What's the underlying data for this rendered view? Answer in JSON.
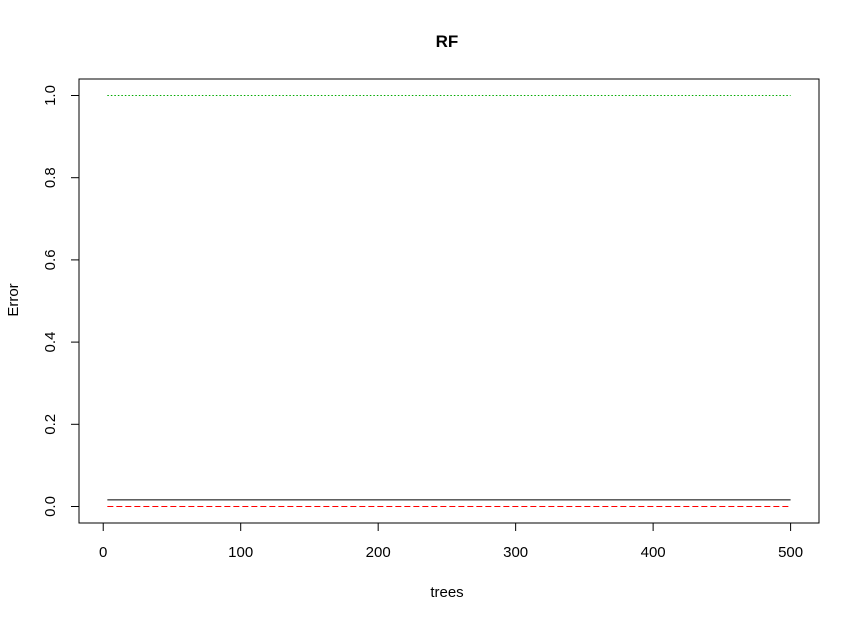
{
  "chart_data": {
    "type": "line",
    "title": "RF",
    "xlabel": "trees",
    "ylabel": "Error",
    "xlim": [
      1,
      500
    ],
    "ylim": [
      0.0,
      1.0
    ],
    "x_ticks": [
      0,
      100,
      200,
      300,
      400,
      500
    ],
    "y_ticks": [
      "0.0",
      "0.2",
      "0.4",
      "0.6",
      "0.8",
      "1.0"
    ],
    "grid": false,
    "legend": "none",
    "series": [
      {
        "color": "#000000",
        "dash": "solid",
        "x": [
          3,
          500
        ],
        "y": [
          0.016,
          0.016
        ]
      },
      {
        "color": "#ff0000",
        "dash": "dashed",
        "x": [
          3,
          500
        ],
        "y": [
          0.0,
          0.0
        ]
      },
      {
        "color": "#00aa00",
        "dash": "dotted",
        "x": [
          3,
          500
        ],
        "y": [
          1.0,
          1.0
        ]
      }
    ]
  }
}
